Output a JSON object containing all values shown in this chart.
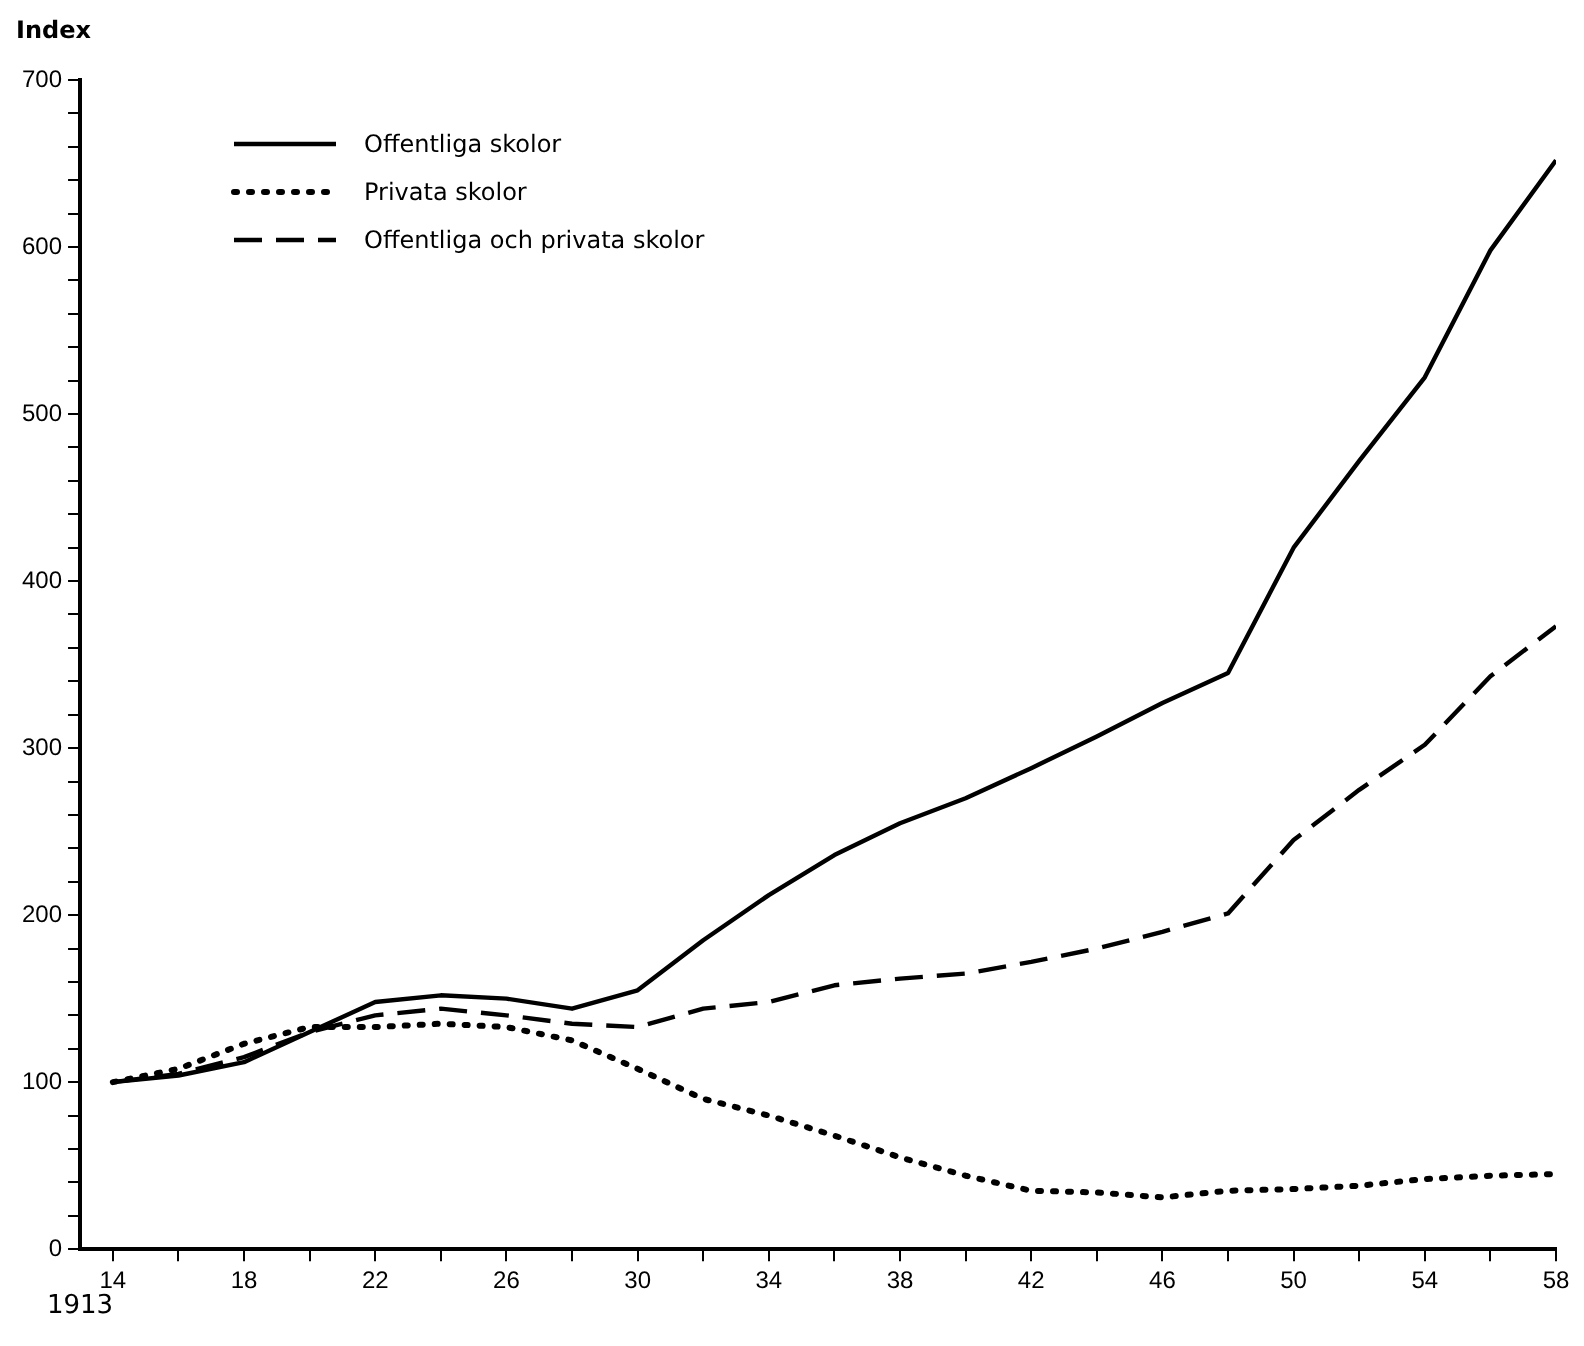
{
  "chart_data": {
    "type": "line",
    "ylabel": "Index",
    "x": [
      14,
      16,
      18,
      20,
      22,
      24,
      26,
      28,
      30,
      32,
      34,
      36,
      38,
      40,
      42,
      44,
      46,
      48,
      50,
      52,
      54,
      56,
      58
    ],
    "series": [
      {
        "name": "Offentliga skolor",
        "color": "#000000",
        "line_style": "solid",
        "values": [
          100,
          104,
          112,
          130,
          148,
          152,
          150,
          144,
          155,
          185,
          212,
          236,
          255,
          270,
          288,
          307,
          327,
          345,
          420,
          472,
          522,
          598,
          652
        ]
      },
      {
        "name": "Privata skolor",
        "color": "#000000",
        "line_style": "dotted",
        "values": [
          100,
          108,
          123,
          133,
          133,
          135,
          133,
          125,
          108,
          90,
          80,
          68,
          55,
          44,
          35,
          34,
          31,
          35,
          36,
          38,
          42,
          44,
          45
        ]
      },
      {
        "name": "Offentliga och privata skolor",
        "color": "#000000",
        "line_style": "dashed",
        "values": [
          100,
          105,
          115,
          130,
          140,
          144,
          140,
          135,
          133,
          144,
          148,
          158,
          162,
          165,
          172,
          180,
          190,
          201,
          245,
          275,
          302,
          343,
          373
        ]
      }
    ],
    "xlim": [
      13,
      58
    ],
    "xticks": [
      14,
      {
        "value": 16,
        "label": null
      },
      18,
      {
        "value": 20,
        "label": null
      },
      22,
      {
        "value": 24,
        "label": null
      },
      26,
      {
        "value": 28,
        "label": null
      },
      30,
      {
        "value": 32,
        "label": null
      },
      34,
      {
        "value": 36,
        "label": null
      },
      38,
      {
        "value": 40,
        "label": null
      },
      42,
      {
        "value": 44,
        "label": null
      },
      46,
      {
        "value": 48,
        "label": null
      },
      50,
      {
        "value": 52,
        "label": null
      },
      54,
      {
        "value": 56,
        "label": null
      },
      58
    ],
    "ylim": [
      0,
      700
    ],
    "yticks": [
      0,
      {
        "value": 20,
        "label": null
      },
      {
        "value": 40,
        "label": null
      },
      {
        "value": 60,
        "label": null
      },
      {
        "value": 80,
        "label": null
      },
      100,
      {
        "value": 120,
        "label": null
      },
      {
        "value": 140,
        "label": null
      },
      {
        "value": 160,
        "label": null
      },
      {
        "value": 180,
        "label": null
      },
      200,
      {
        "value": 220,
        "label": null
      },
      {
        "value": 240,
        "label": null
      },
      {
        "value": 260,
        "label": null
      },
      {
        "value": 280,
        "label": null
      },
      300,
      {
        "value": 320,
        "label": null
      },
      {
        "value": 340,
        "label": null
      },
      {
        "value": 360,
        "label": null
      },
      {
        "value": 380,
        "label": null
      },
      400,
      {
        "value": 420,
        "label": null
      },
      {
        "value": 440,
        "label": null
      },
      {
        "value": 460,
        "label": null
      },
      {
        "value": 480,
        "label": null
      },
      500,
      {
        "value": 520,
        "label": null
      },
      {
        "value": 540,
        "label": null
      },
      {
        "value": 560,
        "label": null
      },
      {
        "value": 580,
        "label": null
      },
      600,
      {
        "value": 620,
        "label": null
      },
      {
        "value": 640,
        "label": null
      },
      {
        "value": 660,
        "label": null
      },
      {
        "value": 680,
        "label": null
      },
      700
    ],
    "annotations": [
      "1913"
    ],
    "grid": false,
    "legend": "top left",
    "marker": "none"
  }
}
